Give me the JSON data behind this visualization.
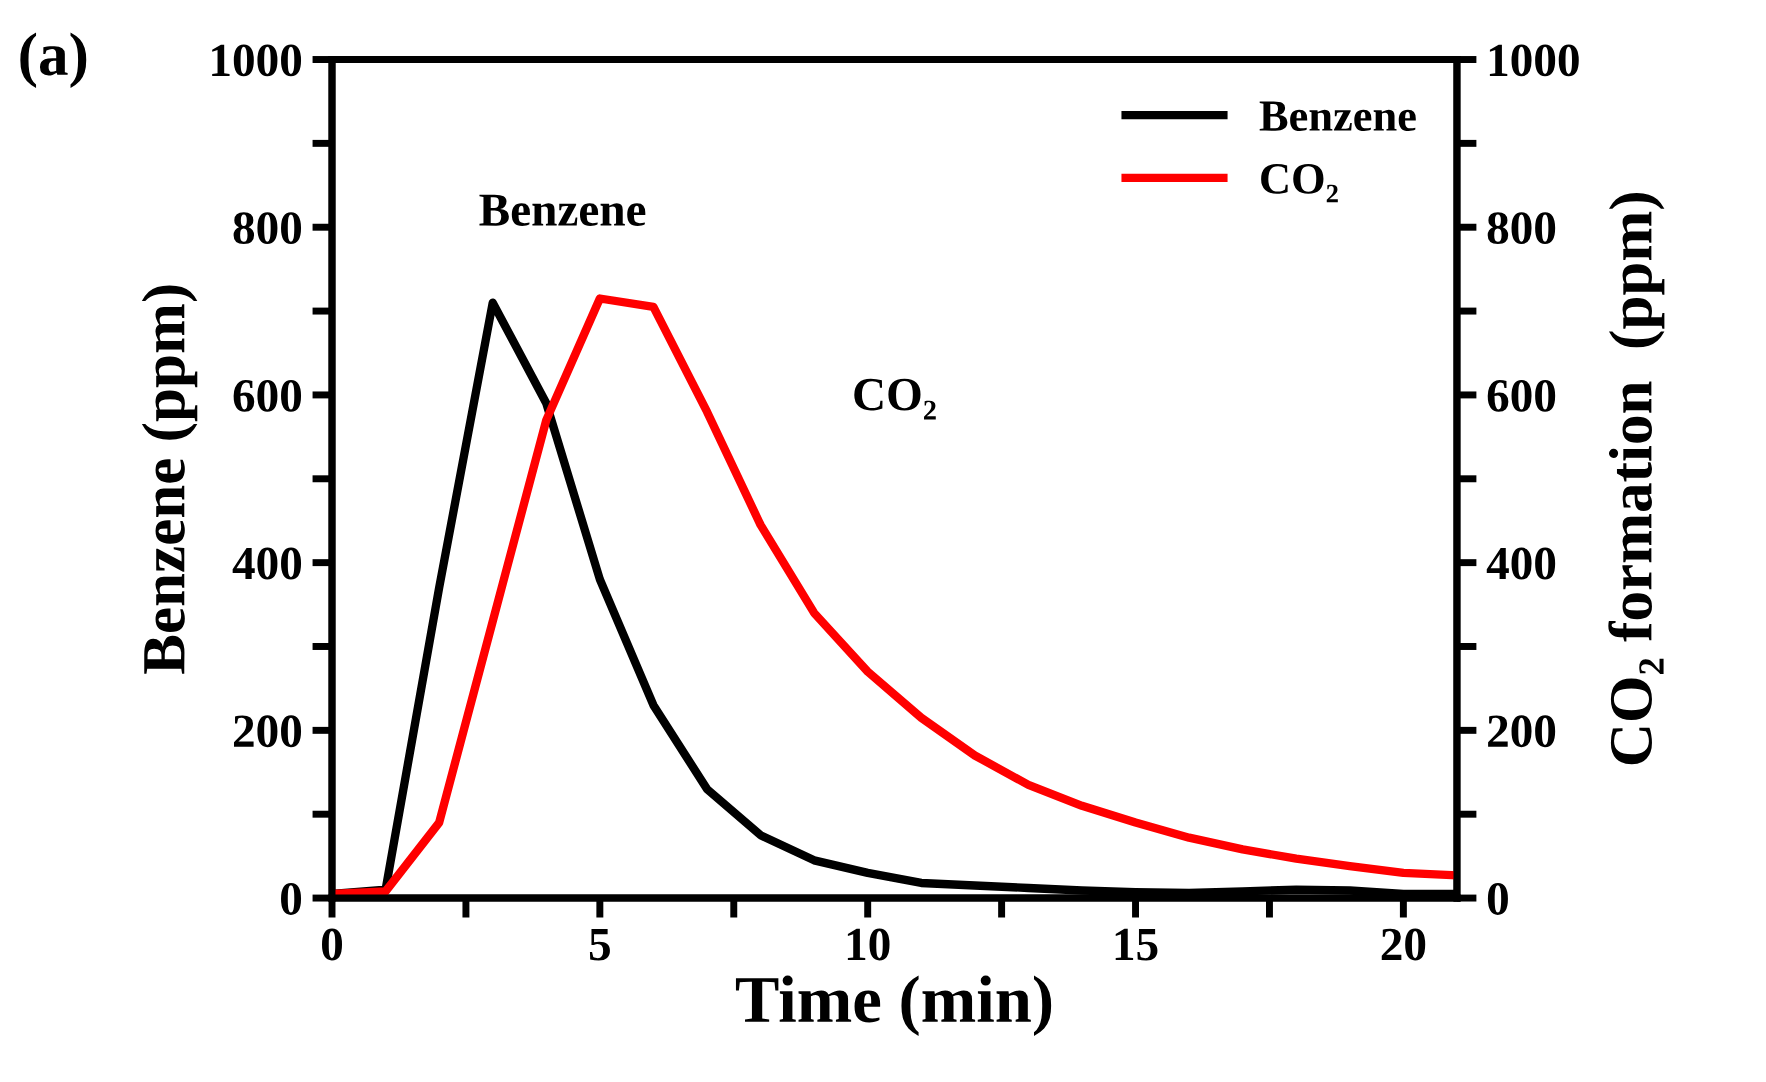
{
  "chart_data": {
    "type": "line",
    "title": "(a)",
    "xlabel": "Time (min)",
    "ylabel": "Benzene (ppm)",
    "y2label": "CO₂ formation  (ppm)",
    "x": [
      0,
      1,
      2,
      3,
      4,
      5,
      6,
      7,
      8,
      9,
      10,
      11,
      12,
      13,
      14,
      15,
      16,
      17,
      18,
      19,
      20,
      21
    ],
    "series": [
      {
        "name": "Benzene",
        "color": "#000000",
        "values": [
          5,
          10,
          370,
          710,
          590,
          380,
          230,
          130,
          75,
          45,
          30,
          18,
          15,
          12,
          9,
          7,
          6,
          8,
          10,
          9,
          5,
          5
        ]
      },
      {
        "name": "CO₂",
        "color": "#ff0000",
        "axis": "y2",
        "values": [
          5,
          8,
          90,
          330,
          570,
          715,
          705,
          580,
          445,
          340,
          270,
          215,
          170,
          135,
          110,
          90,
          72,
          58,
          47,
          38,
          30,
          27
        ]
      }
    ],
    "xlim": [
      0,
      21
    ],
    "xticks": [
      0,
      {
        "value": 2.5,
        "label": null
      },
      5,
      {
        "value": 7.5,
        "label": null
      },
      10,
      {
        "value": 12.5,
        "label": null
      },
      15,
      {
        "value": 17.5,
        "label": null
      },
      20
    ],
    "ylim": [
      0,
      1000
    ],
    "yticks": [
      0,
      {
        "value": 100,
        "label": null
      },
      200,
      {
        "value": 300,
        "label": null
      },
      400,
      {
        "value": 500,
        "label": null
      },
      600,
      {
        "value": 700,
        "label": null
      },
      800,
      {
        "value": 900,
        "label": null
      },
      1000
    ],
    "y2lim": [
      0,
      1000
    ],
    "y2ticks": [
      0,
      {
        "value": 100,
        "label": null
      },
      200,
      {
        "value": 300,
        "label": null
      },
      400,
      {
        "value": 500,
        "label": null
      },
      600,
      {
        "value": 700,
        "label": null
      },
      800,
      {
        "value": 900,
        "label": null
      },
      1000
    ],
    "annotations": [
      "Benzene",
      "CO₂"
    ],
    "legend": "top right",
    "grid": false,
    "marker": "none",
    "line_style": "solid"
  }
}
